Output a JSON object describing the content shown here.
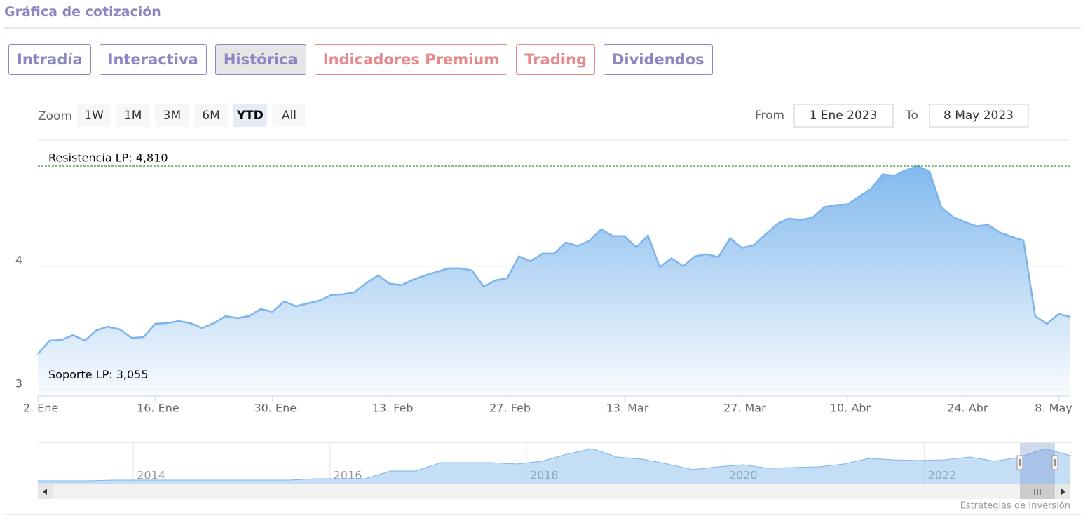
{
  "header": {
    "title": "Gráfica de cotización"
  },
  "tabs": [
    {
      "label": "Intradía",
      "color": "#8c87c2",
      "active": false
    },
    {
      "label": "Interactiva",
      "color": "#8c87c2",
      "active": false
    },
    {
      "label": "Histórica",
      "color": "#8c87c2",
      "active": true
    },
    {
      "label": "Indicadores Premium",
      "color": "#e5898b",
      "active": false
    },
    {
      "label": "Trading",
      "color": "#e5898b",
      "active": false
    },
    {
      "label": "Dividendos",
      "color": "#8c87c2",
      "active": false
    }
  ],
  "zoom": {
    "label": "Zoom",
    "buttons": [
      "1W",
      "1M",
      "3M",
      "6M",
      "YTD",
      "All"
    ],
    "selected": 4
  },
  "range": {
    "from_label": "From",
    "from": "1 Ene 2023",
    "to_label": "To",
    "to": "8 May 2023"
  },
  "credits": "Estrategias de Inversión",
  "chart_data": [
    {
      "type": "area",
      "xlim": [
        0,
        88
      ],
      "xticks": [
        {
          "value": 0,
          "label": "2. Ene"
        },
        {
          "value": 10,
          "label": "16. Ene"
        },
        {
          "value": 20,
          "label": "30. Ene"
        },
        {
          "value": 30,
          "label": "13. Feb"
        },
        {
          "value": 40,
          "label": "27. Feb"
        },
        {
          "value": 50,
          "label": "13. Mar"
        },
        {
          "value": 60,
          "label": "27. Mar"
        },
        {
          "value": 69,
          "label": "10. Abr"
        },
        {
          "value": 79,
          "label": "24. Abr"
        },
        {
          "value": 87,
          "label": "8. May"
        }
      ],
      "ylim": [
        2.95,
        5.02
      ],
      "yticks": [
        3,
        4
      ],
      "grid": true,
      "series": [
        {
          "color": "#7cb5ec",
          "values": [
            3.29,
            3.398,
            3.403,
            3.443,
            3.398,
            3.483,
            3.511,
            3.489,
            3.42,
            3.426,
            3.534,
            3.54,
            3.557,
            3.54,
            3.5,
            3.54,
            3.597,
            3.58,
            3.597,
            3.653,
            3.631,
            3.716,
            3.676,
            3.699,
            3.722,
            3.767,
            3.773,
            3.79,
            3.864,
            3.926,
            3.858,
            3.847,
            3.892,
            3.926,
            3.955,
            3.983,
            3.983,
            3.966,
            3.835,
            3.886,
            3.903,
            4.08,
            4.04,
            4.102,
            4.102,
            4.193,
            4.165,
            4.205,
            4.301,
            4.244,
            4.244,
            4.153,
            4.25,
            3.994,
            4.063,
            4.0,
            4.08,
            4.097,
            4.074,
            4.227,
            4.148,
            4.17,
            4.256,
            4.341,
            4.386,
            4.375,
            4.392,
            4.477,
            4.494,
            4.5,
            4.563,
            4.625,
            4.744,
            4.733,
            4.778,
            4.81,
            4.767,
            4.477,
            4.398,
            4.358,
            4.324,
            4.335,
            4.273,
            4.239,
            4.21,
            3.597,
            3.534,
            3.614,
            3.591
          ]
        }
      ],
      "plot_lines": [
        {
          "value": 4.81,
          "label": "Resistencia LP: 4,810",
          "color": "#0a7a0a"
        },
        {
          "value": 3.055,
          "label": "Soporte LP: 3,055",
          "color": "#8b1010"
        }
      ]
    },
    {
      "type": "area",
      "xlim": [
        0,
        41
      ],
      "xticks": [
        {
          "value": 3.79,
          "label": "2014"
        },
        {
          "value": 11.6,
          "label": "2016"
        },
        {
          "value": 19.4,
          "label": "2018"
        },
        {
          "value": 27.3,
          "label": "2020"
        },
        {
          "value": 35.2,
          "label": "2022"
        }
      ],
      "ylim": [
        0,
        5.2
      ],
      "series": [
        {
          "color": "#7cb5ec",
          "values": [
            0.36,
            0.36,
            0.36,
            0.45,
            0.45,
            0.45,
            0.45,
            0.45,
            0.45,
            0.45,
            0.45,
            0.63,
            0.63,
            0.63,
            1.61,
            1.61,
            2.69,
            2.69,
            2.69,
            2.51,
            2.87,
            3.77,
            4.48,
            3.41,
            3.14,
            2.51,
            1.79,
            2.15,
            2.42,
            1.97,
            2.06,
            2.15,
            2.51,
            3.23,
            3.05,
            2.96,
            3.05,
            3.41,
            2.87,
            3.41,
            4.48,
            3.59
          ]
        }
      ]
    }
  ]
}
